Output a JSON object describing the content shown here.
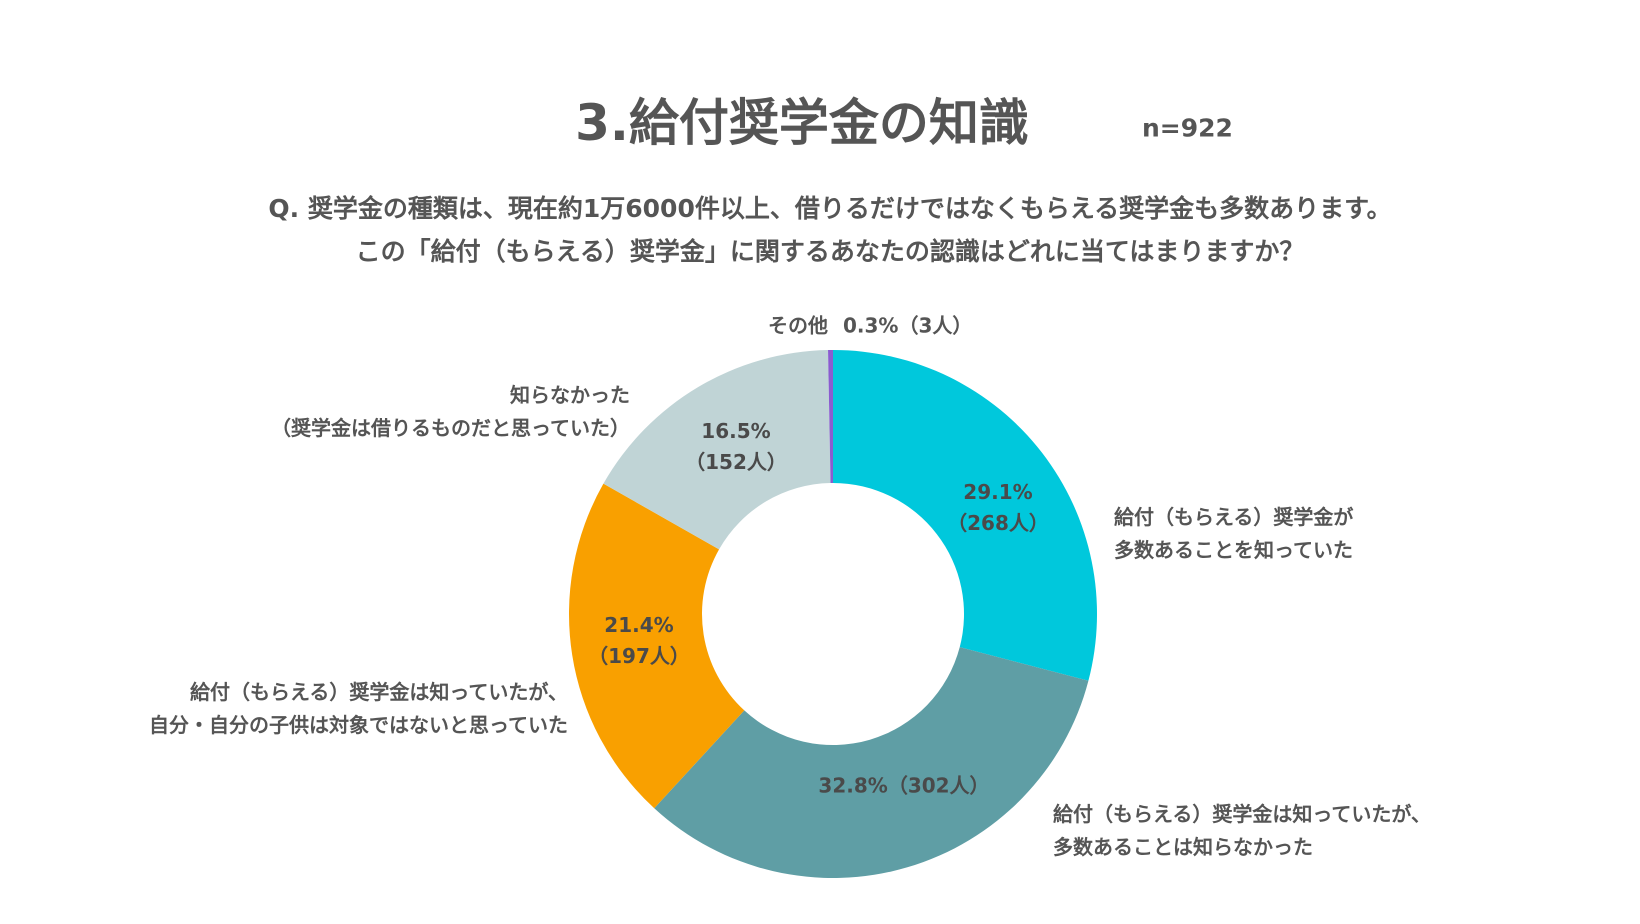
{
  "chart_data": {
    "type": "donut",
    "title": "3.給付奨学金の知識",
    "sample_size": "n=922",
    "question": "Q. 奨学金の種類は、現在約1万6000件以上、借りるだけではなくもらえる奨学金も多数あります。\nこの「給付（もらえる）奨学金」に関するあなたの認識はどれに当てはまりますか？",
    "categories": [
      "給付（もらえる）奨学金が\n多数あることを知っていた",
      "給付（もらえる）奨学金は知っていたが、\n多数あることは知らなかった",
      "給付（もらえる）奨学金は知っていたが、\n自分・自分の子供は対象ではないと思っていた",
      "知らなかった\n（奨学金は借りるものだと思っていた）",
      "その他"
    ],
    "values": [
      29.1,
      32.8,
      21.4,
      16.5,
      0.3
    ],
    "value_labels": [
      "29.1%\n（268人）",
      "32.8%（302人）",
      "21.4%\n（197人）",
      "16.5%\n（152人）",
      "0.3%（3人）"
    ],
    "colors": [
      "#00c8dc",
      "#5f9ea5",
      "#f9a000",
      "#c0d4d6",
      "#8a5cd0"
    ]
  }
}
